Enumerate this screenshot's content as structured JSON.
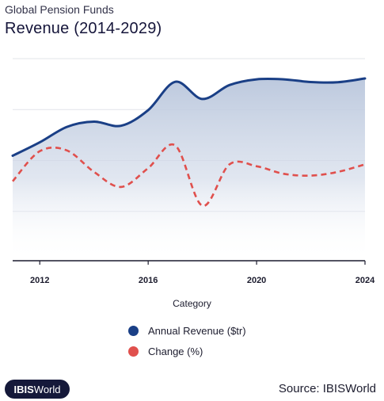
{
  "header": {
    "subtitle": "Global Pension Funds",
    "title": "Revenue (2014-2029)"
  },
  "chart_data": {
    "type": "line",
    "title": "Revenue (2014-2029)",
    "subtitle": "Global Pension Funds",
    "xlabel": "Category",
    "x_ticks": [
      "2012",
      "2016",
      "2020",
      "2024"
    ],
    "grid": "horizontal",
    "legend_position": "bottom",
    "x": [
      2011,
      2012,
      2013,
      2014,
      2015,
      2016,
      2017,
      2018,
      2019,
      2020,
      2021,
      2022,
      2023,
      2024
    ],
    "series": [
      {
        "name": "Annual Revenue ($tr)",
        "axis": "left",
        "style": "solid-area",
        "color": "#1a3f86",
        "values": [
          56.5,
          63.6,
          71.8,
          74.6,
          72.4,
          80.7,
          95.7,
          86.6,
          94.0,
          97.0,
          97.0,
          95.6,
          95.5,
          97.5
        ]
      },
      {
        "name": "Change (%)",
        "axis": "right",
        "style": "dashed",
        "color": "#e0504d",
        "values": [
          -5,
          3,
          3.2,
          -2.5,
          -6.5,
          -1.5,
          4.5,
          -11.5,
          -0.5,
          -1,
          -3,
          -3.5,
          -2.5,
          -0.5
        ]
      }
    ]
  },
  "legend": {
    "items": [
      {
        "label": "Annual Revenue ($tr)",
        "color": "#1a3f86"
      },
      {
        "label": "Change (%)",
        "color": "#e0504d"
      }
    ]
  },
  "footer": {
    "logo_bold": "IBIS",
    "logo_rest": "World",
    "source": "Source: IBISWorld"
  }
}
